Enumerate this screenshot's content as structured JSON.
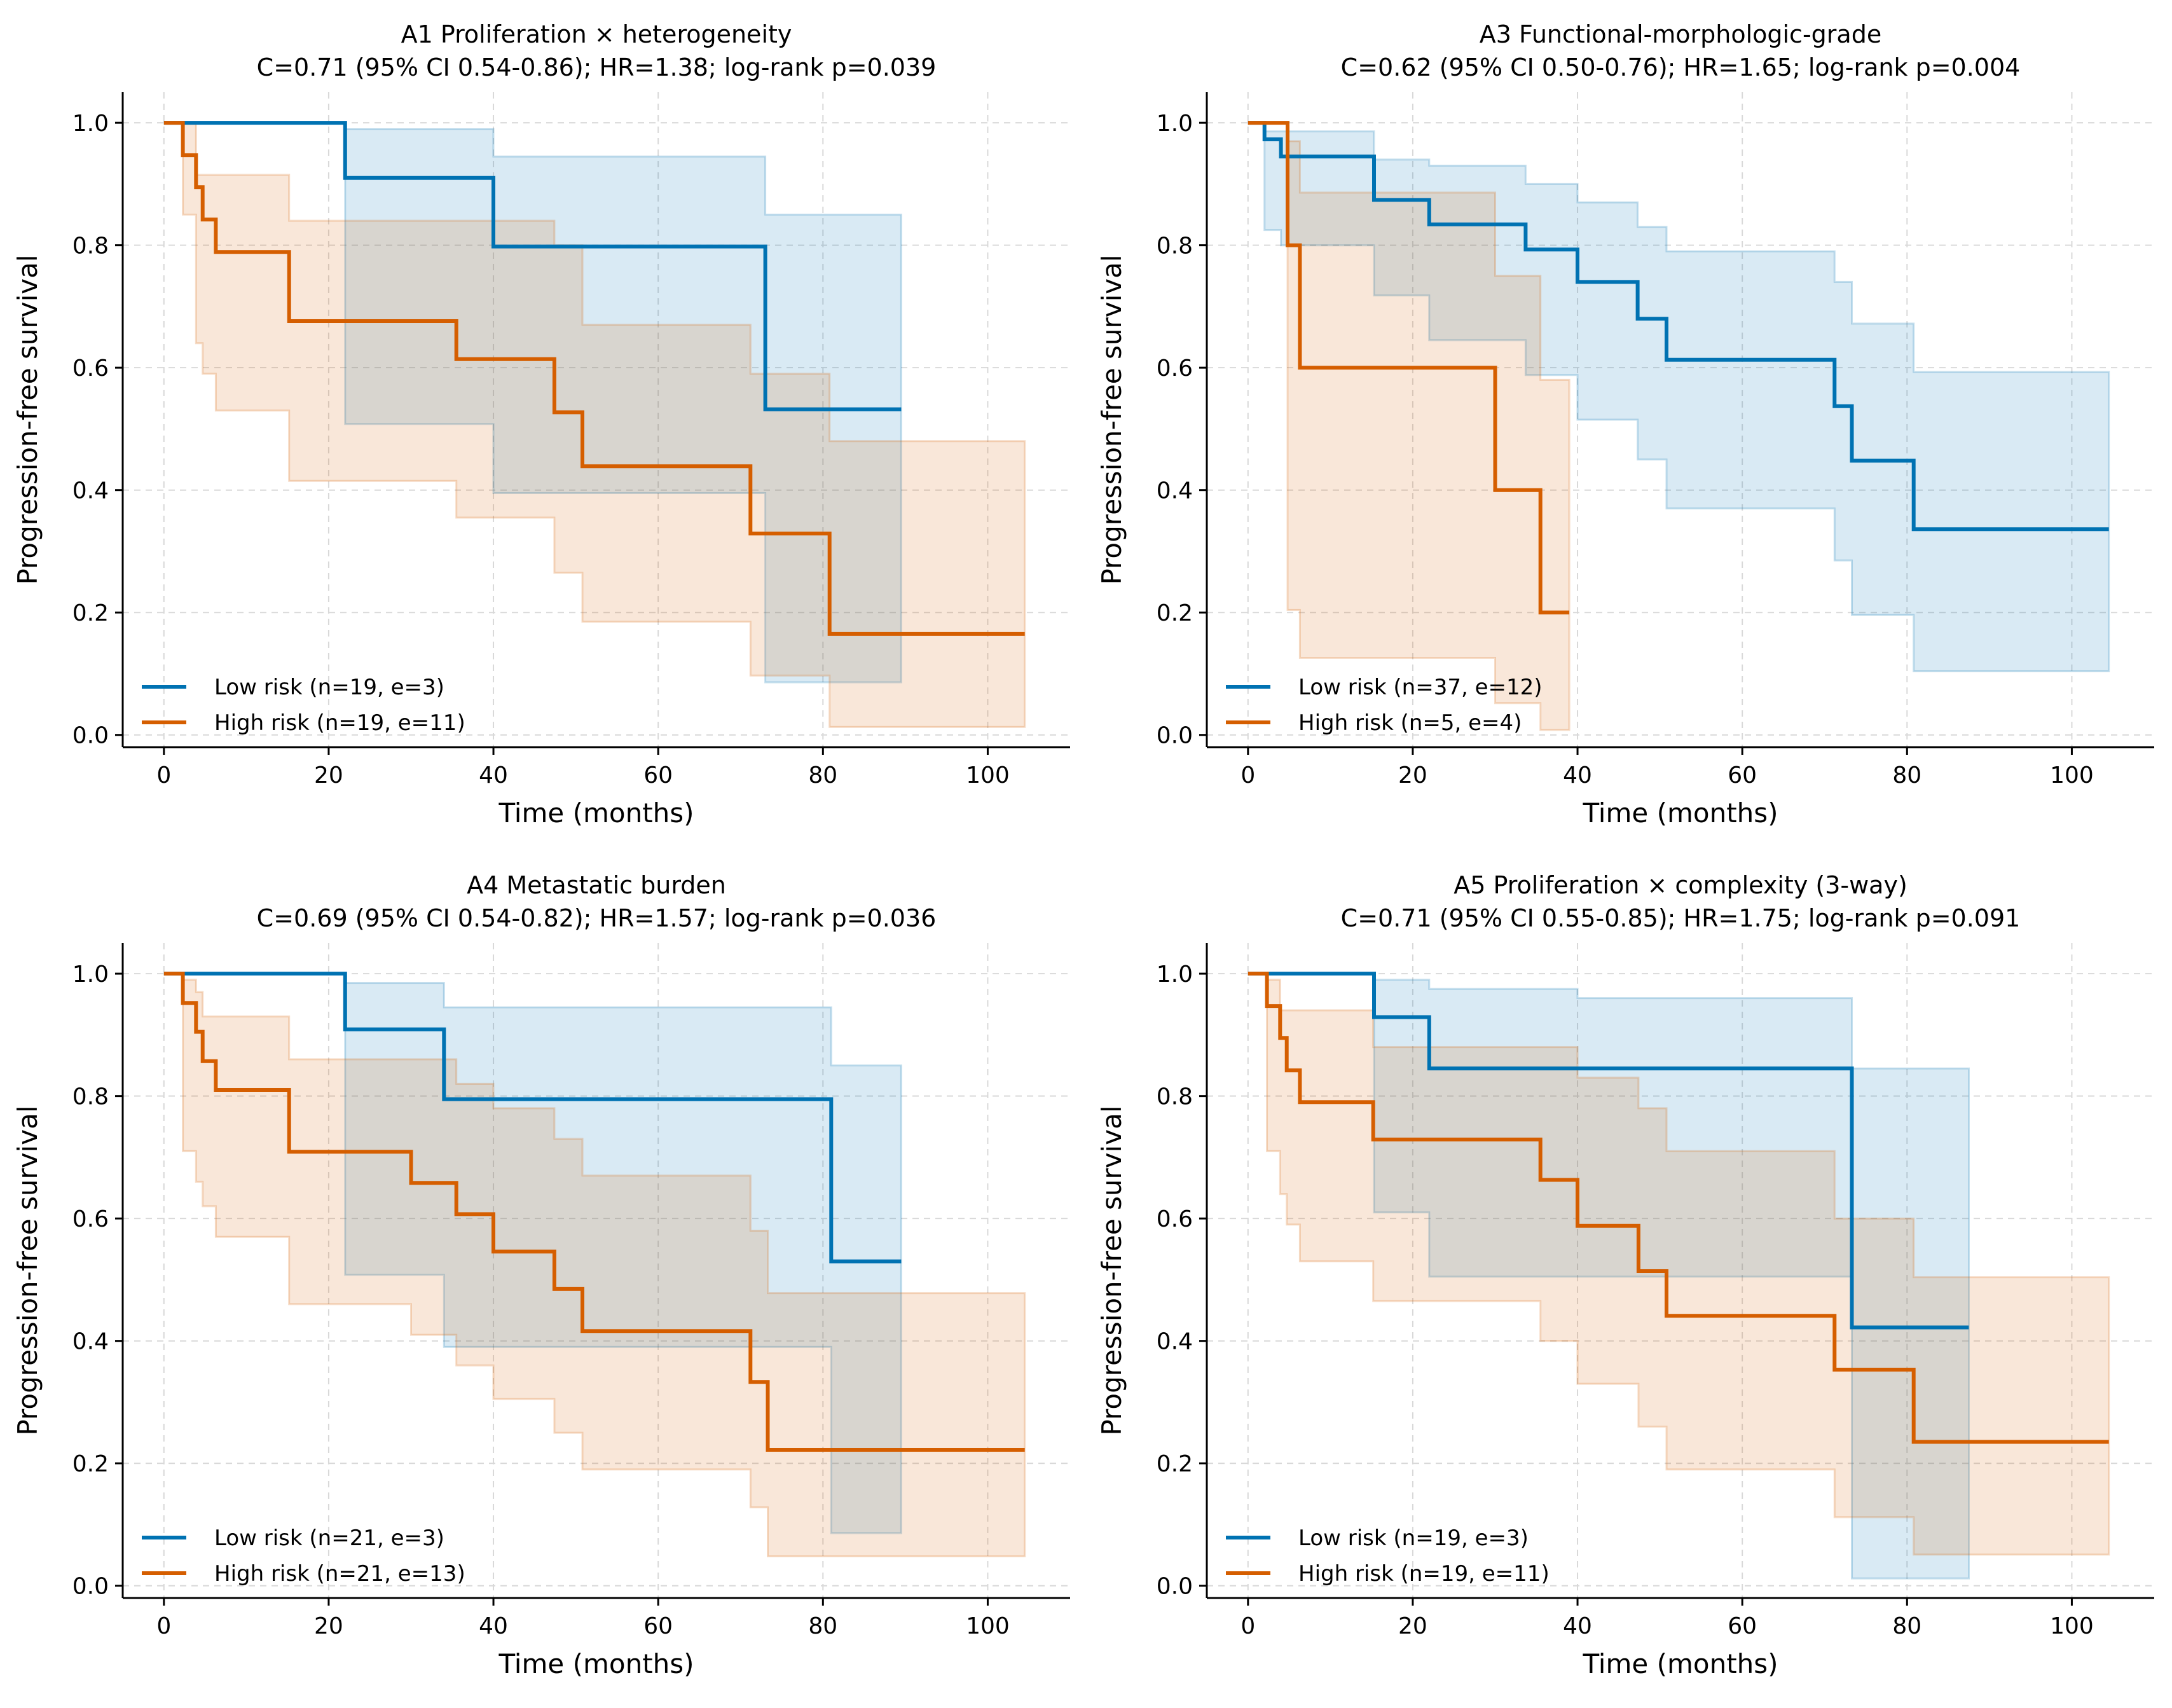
{
  "colors": {
    "low": "#0072B2",
    "high": "#D55E00",
    "grid": "#d9d9d9"
  },
  "chart_data": [
    {
      "type": "line",
      "title": "A1 Proliferation × heterogeneity",
      "subtitle": "C=0.71 (95% CI 0.54-0.86); HR=1.38; log-rank p=0.039",
      "xlabel": "Time (months)",
      "ylabel": "Progression-free survival",
      "xlim": [
        -5,
        110
      ],
      "ylim": [
        -0.02,
        1.05
      ],
      "xticks": [
        "0",
        "20",
        "40",
        "60",
        "80",
        "100"
      ],
      "yticks": [
        "0.0",
        "0.2",
        "0.4",
        "0.6",
        "0.8",
        "1.0"
      ],
      "grid": true,
      "legend_position": "bottom-left",
      "series": [
        {
          "name": "Low risk (n=19, e=3)",
          "color": "#0072B2",
          "x": [
            0,
            22,
            40,
            73,
            89.5
          ],
          "y": [
            1.0,
            0.91,
            0.798,
            0.532,
            0.532
          ],
          "ci_x": [
            0,
            22,
            40,
            52,
            73,
            81,
            89.5
          ],
          "ci_lower": [
            1.0,
            0.508,
            0.395,
            0.395,
            0.086,
            0.086,
            0.086
          ],
          "ci_upper": [
            1.0,
            0.99,
            0.945,
            0.945,
            0.85,
            0.85,
            0.85
          ]
        },
        {
          "name": "High risk (n=19, e=11)",
          "color": "#D55E00",
          "x": [
            0,
            2.3,
            3.9,
            4.7,
            6.3,
            15.2,
            35.5,
            47.4,
            50.8,
            71.2,
            80.8,
            104.5
          ],
          "y": [
            1.0,
            0.947,
            0.895,
            0.842,
            0.789,
            0.676,
            0.614,
            0.527,
            0.439,
            0.329,
            0.165,
            0.165
          ],
          "ci_x": [
            0,
            2.3,
            3.9,
            4.7,
            6.3,
            15.2,
            35.5,
            47.4,
            50.8,
            71.2,
            80.8,
            104.5
          ],
          "ci_lower": [
            1.0,
            0.85,
            0.64,
            0.59,
            0.53,
            0.415,
            0.355,
            0.265,
            0.185,
            0.097,
            0.013,
            0.013
          ],
          "ci_upper": [
            1.0,
            1.0,
            0.915,
            0.915,
            0.915,
            0.84,
            0.84,
            0.8,
            0.67,
            0.59,
            0.48,
            0.48
          ]
        }
      ]
    },
    {
      "type": "line",
      "title": "A3 Functional-morphologic-grade",
      "subtitle": "C=0.62 (95% CI 0.50-0.76); HR=1.65; log-rank p=0.004",
      "xlabel": "Time (months)",
      "ylabel": "Progression-free survival",
      "xlim": [
        -5,
        110
      ],
      "ylim": [
        -0.02,
        1.05
      ],
      "xticks": [
        "0",
        "20",
        "40",
        "60",
        "80",
        "100"
      ],
      "yticks": [
        "0.0",
        "0.2",
        "0.4",
        "0.6",
        "0.8",
        "1.0"
      ],
      "grid": true,
      "legend_position": "bottom-left",
      "series": [
        {
          "name": "Low risk (n=37, e=12)",
          "color": "#0072B2",
          "x": [
            0,
            2,
            4,
            15.3,
            22,
            33.7,
            40,
            47.3,
            50.8,
            71.2,
            73.3,
            80.8,
            104.5
          ],
          "y": [
            1.0,
            0.973,
            0.945,
            0.874,
            0.834,
            0.793,
            0.74,
            0.68,
            0.613,
            0.537,
            0.448,
            0.336,
            0.336
          ],
          "ci_x": [
            0,
            2,
            4,
            15.3,
            22,
            33.7,
            40,
            47.3,
            50.8,
            71.2,
            73.3,
            80.8,
            104.5
          ],
          "ci_lower": [
            1.0,
            0.825,
            0.8,
            0.718,
            0.645,
            0.588,
            0.515,
            0.45,
            0.37,
            0.285,
            0.196,
            0.104,
            0.104
          ],
          "ci_upper": [
            1.0,
            0.986,
            0.986,
            0.94,
            0.93,
            0.9,
            0.87,
            0.83,
            0.79,
            0.74,
            0.672,
            0.593,
            0.593
          ]
        },
        {
          "name": "High risk (n=5, e=4)",
          "color": "#D55E00",
          "x": [
            0,
            4.8,
            6.3,
            30,
            35.5,
            39
          ],
          "y": [
            1.0,
            0.8,
            0.6,
            0.4,
            0.2,
            0.2
          ],
          "ci_x": [
            0,
            4.8,
            6.3,
            30,
            35.5,
            39
          ],
          "ci_lower": [
            1.0,
            0.204,
            0.126,
            0.052,
            0.008,
            0.008
          ],
          "ci_upper": [
            1.0,
            0.97,
            0.886,
            0.75,
            0.58,
            0.58
          ]
        }
      ]
    },
    {
      "type": "line",
      "title": "A4 Metastatic burden",
      "subtitle": "C=0.69 (95% CI 0.54-0.82); HR=1.57; log-rank p=0.036",
      "xlabel": "Time (months)",
      "ylabel": "Progression-free survival",
      "xlim": [
        -5,
        110
      ],
      "ylim": [
        -0.02,
        1.05
      ],
      "xticks": [
        "0",
        "20",
        "40",
        "60",
        "80",
        "100"
      ],
      "yticks": [
        "0.0",
        "0.2",
        "0.4",
        "0.6",
        "0.8",
        "1.0"
      ],
      "grid": true,
      "legend_position": "bottom-left",
      "series": [
        {
          "name": "Low risk (n=21, e=3)",
          "color": "#0072B2",
          "x": [
            0,
            22,
            34,
            81,
            89.5
          ],
          "y": [
            1.0,
            0.909,
            0.795,
            0.53,
            0.53
          ],
          "ci_x": [
            0,
            22,
            34,
            81,
            89.5
          ],
          "ci_lower": [
            1.0,
            0.508,
            0.39,
            0.086,
            0.086
          ],
          "ci_upper": [
            1.0,
            0.985,
            0.945,
            0.85,
            0.85
          ]
        },
        {
          "name": "High risk (n=21, e=13)",
          "color": "#D55E00",
          "x": [
            0,
            2.3,
            3.9,
            4.7,
            6.3,
            15.2,
            30,
            35.5,
            40,
            47.4,
            50.8,
            71.2,
            73.3,
            104.5
          ],
          "y": [
            1.0,
            0.952,
            0.905,
            0.857,
            0.81,
            0.709,
            0.658,
            0.607,
            0.546,
            0.485,
            0.416,
            0.333,
            0.222,
            0.222
          ],
          "ci_x": [
            0,
            2.3,
            3.9,
            4.7,
            6.3,
            15.2,
            30,
            35.5,
            40,
            47.4,
            50.8,
            71.2,
            73.3,
            104.5
          ],
          "ci_lower": [
            1.0,
            0.71,
            0.66,
            0.62,
            0.57,
            0.46,
            0.41,
            0.36,
            0.305,
            0.25,
            0.19,
            0.128,
            0.048,
            0.048
          ],
          "ci_upper": [
            1.0,
            0.99,
            0.97,
            0.93,
            0.93,
            0.86,
            0.86,
            0.82,
            0.78,
            0.73,
            0.67,
            0.58,
            0.478,
            0.478
          ]
        }
      ]
    },
    {
      "type": "line",
      "title": "A5 Proliferation × complexity (3-way)",
      "subtitle": "C=0.71 (95% CI 0.55-0.85); HR=1.75; log-rank p=0.091",
      "xlabel": "Time (months)",
      "ylabel": "Progression-free survival",
      "xlim": [
        -5,
        110
      ],
      "ylim": [
        -0.02,
        1.05
      ],
      "xticks": [
        "0",
        "20",
        "40",
        "60",
        "80",
        "100"
      ],
      "yticks": [
        "0.0",
        "0.2",
        "0.4",
        "0.6",
        "0.8",
        "1.0"
      ],
      "grid": true,
      "legend_position": "bottom-left",
      "series": [
        {
          "name": "Low risk (n=19, e=3)",
          "color": "#0072B2",
          "x": [
            0,
            15.3,
            22,
            73.3,
            87.5
          ],
          "y": [
            1.0,
            0.929,
            0.845,
            0.422,
            0.422
          ],
          "ci_x": [
            0,
            15.3,
            22,
            40,
            71,
            73.3,
            87.5
          ],
          "ci_lower": [
            1.0,
            0.61,
            0.505,
            0.505,
            0.505,
            0.012,
            0.012
          ],
          "ci_upper": [
            1.0,
            0.99,
            0.975,
            0.96,
            0.96,
            0.845,
            0.845
          ]
        },
        {
          "name": "High risk (n=19, e=11)",
          "color": "#D55E00",
          "x": [
            0,
            2.3,
            3.9,
            4.7,
            6.3,
            15.2,
            35.5,
            40,
            47.4,
            50.8,
            71.2,
            80.8,
            104.5
          ],
          "y": [
            1.0,
            0.947,
            0.895,
            0.842,
            0.79,
            0.729,
            0.663,
            0.588,
            0.514,
            0.441,
            0.353,
            0.235,
            0.235
          ],
          "ci_x": [
            0,
            2.3,
            3.9,
            4.7,
            6.3,
            15.2,
            35.5,
            40,
            47.4,
            50.8,
            71.2,
            80.8,
            104.5
          ],
          "ci_lower": [
            1.0,
            0.71,
            0.64,
            0.59,
            0.53,
            0.465,
            0.4,
            0.33,
            0.26,
            0.19,
            0.112,
            0.051,
            0.051
          ],
          "ci_upper": [
            1.0,
            0.99,
            0.94,
            0.94,
            0.94,
            0.88,
            0.88,
            0.83,
            0.78,
            0.71,
            0.6,
            0.504,
            0.504
          ]
        }
      ]
    }
  ]
}
